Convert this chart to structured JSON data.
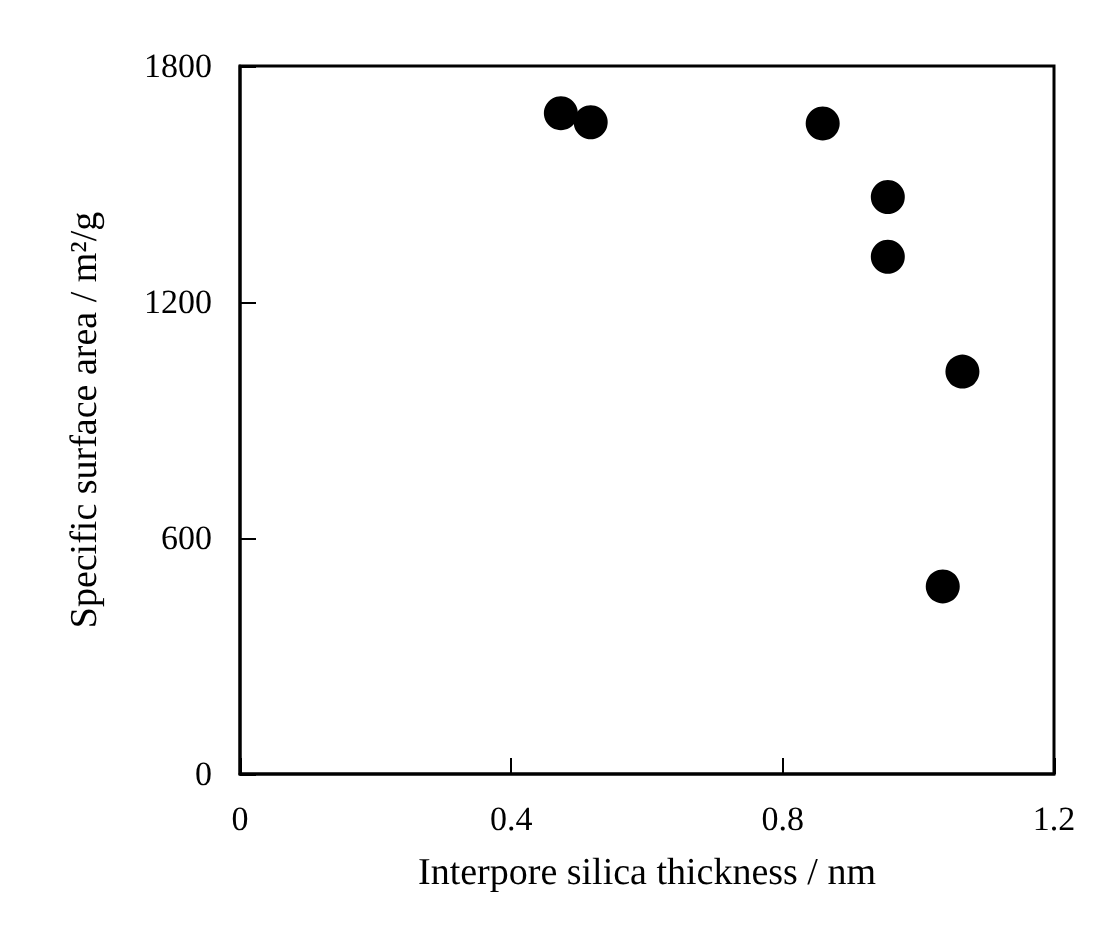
{
  "chart_data": {
    "type": "scatter",
    "xlabel": "Interpore silica thickness / nm",
    "ylabel": "Specific surface area / m²/g",
    "x": [
      0.473,
      0.517,
      0.859,
      0.955,
      0.955,
      1.065,
      1.036
    ],
    "values": [
      1680,
      1657,
      1654,
      1467,
      1315,
      1023,
      477
    ],
    "color": "#000000",
    "marker": "circle",
    "xlim": [
      0,
      1.2
    ],
    "xticks": [
      0,
      0.4,
      0.8,
      1.2
    ],
    "ylim": [
      0,
      1800
    ],
    "yticks": [
      0,
      600,
      1200,
      1800
    ],
    "grid": false
  }
}
